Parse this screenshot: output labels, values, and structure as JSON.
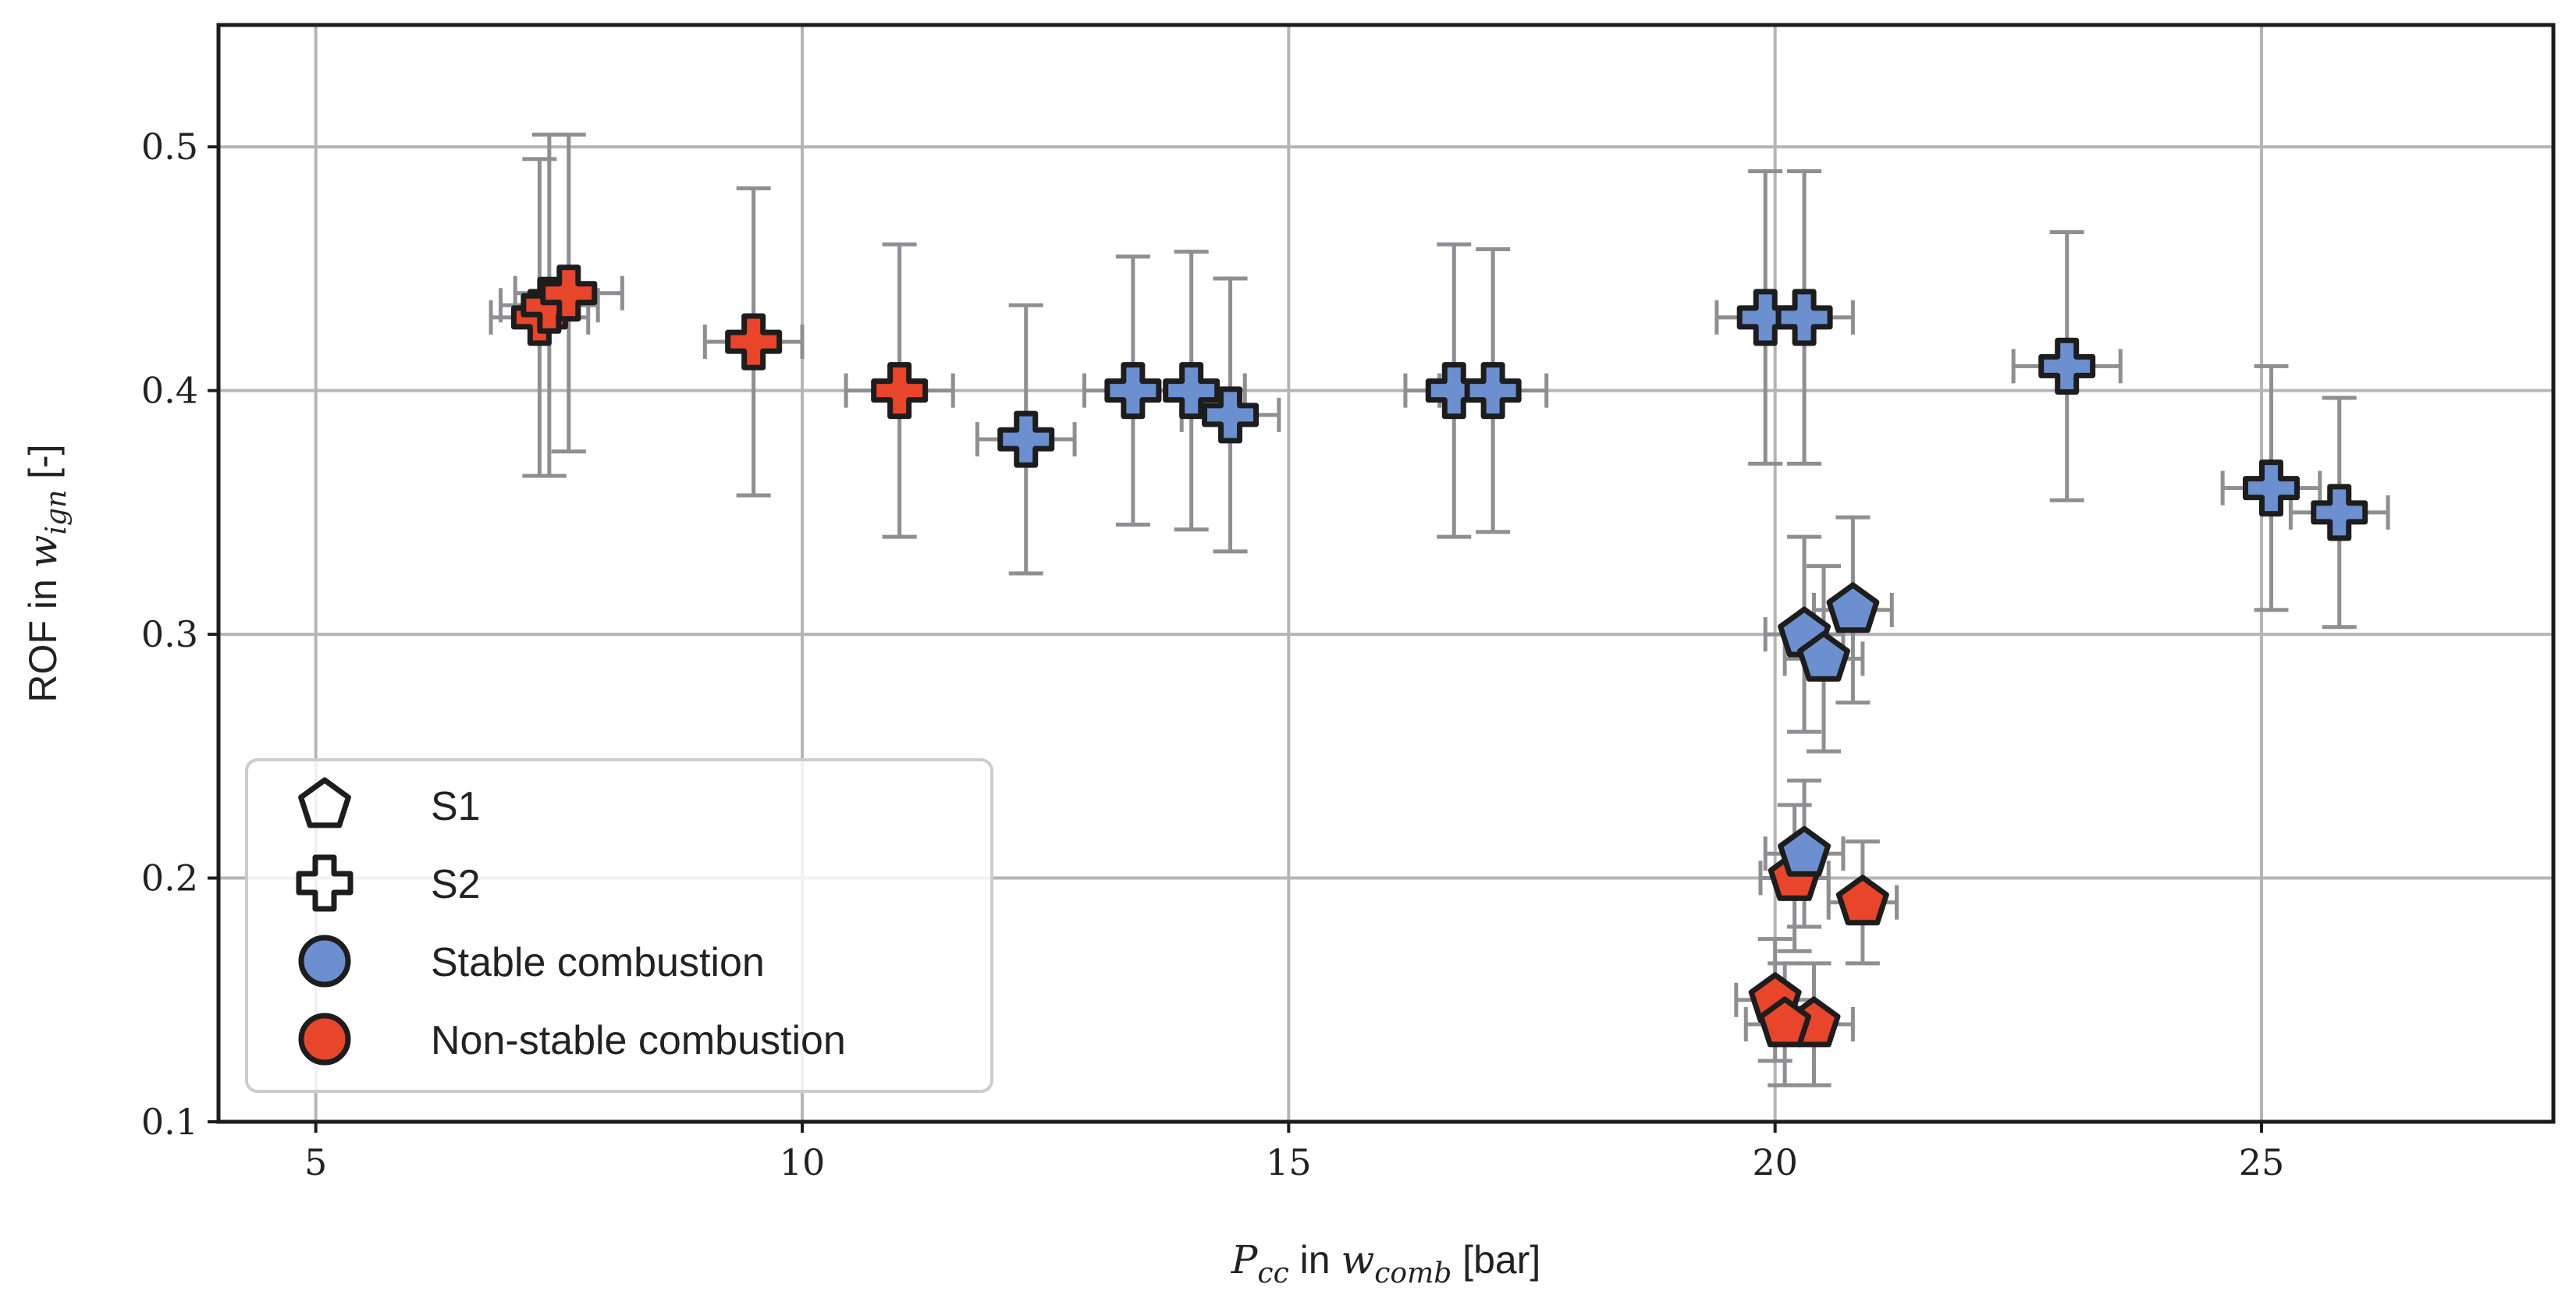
{
  "chart_data": {
    "type": "scatter",
    "title": "",
    "xlabel": {
      "math": "P",
      "sub": "cc",
      "mid": " in ",
      "math2": "w",
      "sub2": "comb",
      "tail": " [bar]"
    },
    "ylabel": {
      "prefix": "ROF in ",
      "math": "w",
      "sub": "ign",
      "tail": " [-]"
    },
    "xlim": [
      4,
      28
    ],
    "ylim": [
      0.1,
      0.55
    ],
    "xticks": [
      5,
      10,
      15,
      20,
      25
    ],
    "yticks": [
      0.1,
      0.2,
      0.3,
      0.4,
      0.5
    ],
    "xtick_labels": [
      "5",
      "10",
      "15",
      "20",
      "25"
    ],
    "ytick_labels": [
      "0.1",
      "0.2",
      "0.3",
      "0.4",
      "0.5"
    ],
    "grid": true,
    "colors": {
      "stable": "#6b8fcf",
      "nonstable": "#e8452a",
      "errorbar": "#8e8e93",
      "edge": "#1d1d1d"
    },
    "legend": {
      "position": "lower-left",
      "entries": [
        {
          "label": "S1",
          "marker": "pentagon",
          "fill": "none"
        },
        {
          "label": "S2",
          "marker": "plus",
          "fill": "none"
        },
        {
          "label": "Stable combustion",
          "marker": "circle",
          "fill": "stable"
        },
        {
          "label": "Non-stable combustion",
          "marker": "circle",
          "fill": "nonstable"
        }
      ]
    },
    "series": [
      {
        "name": "S2",
        "marker": "plus",
        "points": [
          {
            "x": 7.3,
            "y": 0.43,
            "xerr": 0.5,
            "yerr": 0.065,
            "state": "nonstable"
          },
          {
            "x": 7.4,
            "y": 0.435,
            "xerr": 0.5,
            "yerr": 0.07,
            "state": "nonstable"
          },
          {
            "x": 7.6,
            "y": 0.44,
            "xerr": 0.55,
            "yerr": 0.065,
            "state": "nonstable"
          },
          {
            "x": 9.5,
            "y": 0.42,
            "xerr": 0.5,
            "yerr": 0.063,
            "state": "nonstable"
          },
          {
            "x": 11.0,
            "y": 0.4,
            "xerr": 0.55,
            "yerr": 0.06,
            "state": "nonstable"
          },
          {
            "x": 12.3,
            "y": 0.38,
            "xerr": 0.5,
            "yerr": 0.055,
            "state": "stable"
          },
          {
            "x": 13.4,
            "y": 0.4,
            "xerr": 0.5,
            "yerr": 0.055,
            "state": "stable"
          },
          {
            "x": 14.0,
            "y": 0.4,
            "xerr": 0.55,
            "yerr": 0.057,
            "state": "stable"
          },
          {
            "x": 14.4,
            "y": 0.39,
            "xerr": 0.5,
            "yerr": 0.056,
            "state": "stable"
          },
          {
            "x": 16.7,
            "y": 0.4,
            "xerr": 0.5,
            "yerr": 0.06,
            "state": "stable"
          },
          {
            "x": 17.1,
            "y": 0.4,
            "xerr": 0.55,
            "yerr": 0.058,
            "state": "stable"
          },
          {
            "x": 19.9,
            "y": 0.43,
            "xerr": 0.5,
            "yerr": 0.06,
            "state": "stable"
          },
          {
            "x": 20.3,
            "y": 0.43,
            "xerr": 0.5,
            "yerr": 0.06,
            "state": "stable"
          },
          {
            "x": 23.0,
            "y": 0.41,
            "xerr": 0.55,
            "yerr": 0.055,
            "state": "stable"
          },
          {
            "x": 25.1,
            "y": 0.36,
            "xerr": 0.5,
            "yerr": 0.05,
            "state": "stable"
          },
          {
            "x": 25.8,
            "y": 0.35,
            "xerr": 0.5,
            "yerr": 0.047,
            "state": "stable"
          }
        ]
      },
      {
        "name": "S1",
        "marker": "pentagon",
        "points": [
          {
            "x": 20.3,
            "y": 0.3,
            "xerr": 0.4,
            "yerr": 0.04,
            "state": "stable"
          },
          {
            "x": 20.8,
            "y": 0.31,
            "xerr": 0.4,
            "yerr": 0.038,
            "state": "stable"
          },
          {
            "x": 20.5,
            "y": 0.29,
            "xerr": 0.4,
            "yerr": 0.038,
            "state": "stable"
          },
          {
            "x": 20.2,
            "y": 0.2,
            "xerr": 0.35,
            "yerr": 0.03,
            "state": "nonstable"
          },
          {
            "x": 20.3,
            "y": 0.21,
            "xerr": 0.4,
            "yerr": 0.03,
            "state": "stable"
          },
          {
            "x": 20.9,
            "y": 0.19,
            "xerr": 0.35,
            "yerr": 0.025,
            "state": "nonstable"
          },
          {
            "x": 20.0,
            "y": 0.15,
            "xerr": 0.4,
            "yerr": 0.025,
            "state": "nonstable"
          },
          {
            "x": 20.4,
            "y": 0.14,
            "xerr": 0.4,
            "yerr": 0.025,
            "state": "nonstable"
          },
          {
            "x": 20.1,
            "y": 0.14,
            "xerr": 0.4,
            "yerr": 0.025,
            "state": "nonstable"
          }
        ]
      }
    ]
  }
}
